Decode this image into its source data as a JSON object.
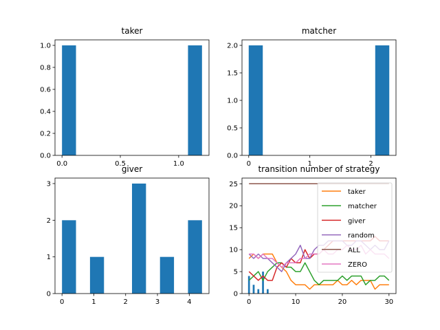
{
  "figure": {
    "background": "#ffffff",
    "bar_color": "#1f77b4"
  },
  "chart_data": [
    {
      "id": "taker",
      "type": "bar",
      "title": "taker",
      "xlim": [
        -0.06,
        1.26
      ],
      "ylim": [
        0,
        1.05
      ],
      "xticks": [
        0.0,
        0.5,
        1.0
      ],
      "xtick_labels": [
        "0.0",
        "0.5",
        "1.0"
      ],
      "yticks": [
        0,
        0.2,
        0.4,
        0.6,
        0.8,
        1.0
      ],
      "ytick_labels": [
        "0.0",
        "0.2",
        "0.4",
        "0.6",
        "0.8",
        "1.0"
      ],
      "bars": [
        {
          "x0": 0.0,
          "x1": 0.12,
          "value": 1
        },
        {
          "x0": 1.08,
          "x1": 1.2,
          "value": 1
        }
      ]
    },
    {
      "id": "matcher",
      "type": "bar",
      "title": "matcher",
      "xlim": [
        -0.11,
        2.41
      ],
      "ylim": [
        0,
        2.1
      ],
      "xticks": [
        0,
        1,
        2
      ],
      "xtick_labels": [
        "0",
        "1",
        "2"
      ],
      "yticks": [
        0,
        0.5,
        1.0,
        1.5,
        2.0
      ],
      "ytick_labels": [
        "0.0",
        "0.5",
        "1.0",
        "1.5",
        "2.0"
      ],
      "bars": [
        {
          "x0": 0.0,
          "x1": 0.23,
          "value": 2
        },
        {
          "x0": 2.07,
          "x1": 2.3,
          "value": 2
        }
      ]
    },
    {
      "id": "giver",
      "type": "bar",
      "title": "giver",
      "xlim": [
        -0.22,
        4.62
      ],
      "ylim": [
        0,
        3.15
      ],
      "xticks": [
        0,
        1,
        2,
        3,
        4
      ],
      "xtick_labels": [
        "0",
        "1",
        "2",
        "3",
        "4"
      ],
      "yticks": [
        0,
        1,
        2,
        3
      ],
      "ytick_labels": [
        "0",
        "1",
        "2",
        "3"
      ],
      "bars": [
        {
          "x0": 0.0,
          "x1": 0.44,
          "value": 2
        },
        {
          "x0": 0.88,
          "x1": 1.32,
          "value": 1
        },
        {
          "x0": 2.2,
          "x1": 2.64,
          "value": 3
        },
        {
          "x0": 3.08,
          "x1": 3.52,
          "value": 1
        },
        {
          "x0": 3.96,
          "x1": 4.4,
          "value": 2
        }
      ]
    },
    {
      "id": "transition",
      "type": "line",
      "title": "transition number of strategy",
      "xlim": [
        -1.5,
        31.5
      ],
      "ylim": [
        0,
        26.3
      ],
      "xticks": [
        0,
        10,
        20,
        30
      ],
      "xtick_labels": [
        "0",
        "10",
        "20",
        "30"
      ],
      "yticks": [
        0,
        5,
        10,
        15,
        20,
        25
      ],
      "ytick_labels": [
        "0",
        "5",
        "10",
        "15",
        "20",
        "25"
      ],
      "legend_position": "upper-right",
      "x": [
        0,
        1,
        2,
        3,
        4,
        5,
        6,
        7,
        8,
        9,
        10,
        11,
        12,
        13,
        14,
        15,
        16,
        17,
        18,
        19,
        20,
        21,
        22,
        23,
        24,
        25,
        26,
        27,
        28,
        29,
        30
      ],
      "series": [
        {
          "name": "taker",
          "color": "#ff7f0e",
          "values": [
            8,
            9,
            8,
            9,
            9,
            9,
            7,
            6,
            5,
            3,
            2,
            2,
            2,
            1,
            2,
            2,
            2,
            2,
            2,
            3,
            2,
            2,
            3,
            2,
            3,
            3,
            3,
            1,
            2,
            2,
            2
          ]
        },
        {
          "name": "matcher",
          "color": "#2ca02c",
          "values": [
            3,
            4,
            5,
            3,
            5,
            6,
            7,
            7,
            6,
            6,
            5,
            5,
            7,
            5,
            3,
            2,
            3,
            3,
            3,
            3,
            4,
            3,
            4,
            4,
            4,
            2,
            3,
            3,
            4,
            4,
            3
          ]
        },
        {
          "name": "giver",
          "color": "#d62728",
          "values": [
            5,
            4,
            3,
            4,
            3,
            3,
            6,
            7,
            6,
            8,
            7,
            7,
            10,
            8,
            9,
            9,
            10,
            11,
            12,
            12,
            12,
            12,
            12,
            12,
            12,
            12,
            12,
            13,
            12,
            12,
            12
          ]
        },
        {
          "name": "random",
          "color": "#9467bd",
          "values": [
            9,
            8,
            9,
            8,
            8,
            7,
            6,
            5,
            7,
            8,
            9,
            11,
            8,
            8,
            10,
            11,
            11,
            12,
            12,
            12,
            12,
            11,
            11,
            12,
            12,
            11,
            10,
            11,
            10,
            10,
            12
          ]
        },
        {
          "name": "ALL",
          "color": "#8c564b",
          "values": [
            25,
            25,
            25,
            25,
            25,
            25,
            25,
            25,
            25,
            25,
            25,
            25,
            25,
            25,
            25,
            25,
            25,
            25,
            25,
            25,
            25,
            25,
            25,
            25,
            25,
            25,
            25,
            25,
            25,
            25,
            25
          ]
        },
        {
          "name": "ZERO",
          "color": "#e377c2",
          "values": [
            9,
            9,
            8,
            9,
            8,
            8,
            7,
            6,
            7,
            7,
            7,
            8,
            8,
            9,
            9,
            9,
            10,
            9,
            9,
            10,
            10,
            11,
            10,
            10,
            11,
            9,
            10,
            9,
            9,
            9,
            8
          ]
        }
      ],
      "overlay_bars": {
        "color": "#1f77b4",
        "bars": [
          {
            "x0": -0.2,
            "x1": 0.2,
            "value": 4
          },
          {
            "x0": 0.8,
            "x1": 1.2,
            "value": 2
          },
          {
            "x0": 1.8,
            "x1": 2.2,
            "value": 1
          },
          {
            "x0": 2.8,
            "x1": 3.2,
            "value": 5
          },
          {
            "x0": 3.8,
            "x1": 4.2,
            "value": 1
          }
        ]
      }
    }
  ]
}
